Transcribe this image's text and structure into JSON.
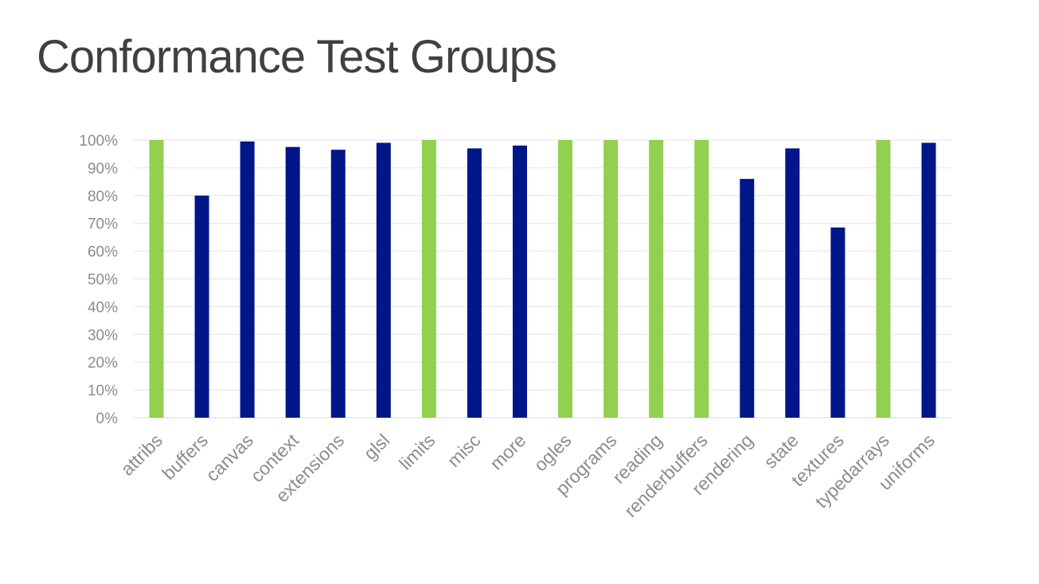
{
  "slide": {
    "title": "Conformance Test Groups"
  },
  "colors": {
    "pass_full": "#92d050",
    "partial": "#001689"
  },
  "chart_data": {
    "type": "bar",
    "title": "Conformance Test Groups",
    "xlabel": "",
    "ylabel": "",
    "ylim": [
      0,
      100
    ],
    "y_tick_step": 10,
    "y_tick_format": "percent",
    "grid": true,
    "legend": "none",
    "categories": [
      "attribs",
      "buffers",
      "canvas",
      "context",
      "extensions",
      "glsl",
      "limits",
      "misc",
      "more",
      "ogles",
      "programs",
      "reading",
      "renderbuffers",
      "rendering",
      "state",
      "textures",
      "typedarrays",
      "uniforms"
    ],
    "values": [
      100,
      80,
      99.5,
      97.5,
      96.5,
      99,
      100,
      97,
      98,
      100,
      100,
      100,
      100,
      86,
      97,
      68.5,
      100,
      99
    ]
  }
}
